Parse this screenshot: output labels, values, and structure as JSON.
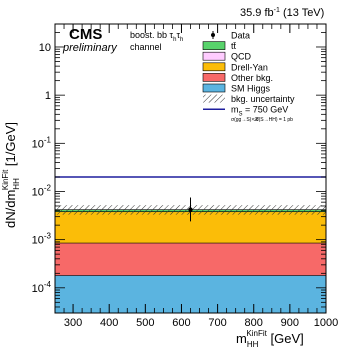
{
  "header": {
    "lumi": "35.9 fb",
    "lumi_sup": "-1",
    "energy": "(13 TeV)",
    "cms": "CMS",
    "preliminary": "preliminary",
    "channel_line1": "boost. bb τ",
    "channel_line2": "channel",
    "tau_sub": "h"
  },
  "chart_data": {
    "type": "area",
    "xlabel_main": "m",
    "xlabel_sub": "HH",
    "xlabel_sup": "KinFit",
    "xlabel_unit": "[GeV]",
    "ylabel_main": "dN/dm",
    "ylabel_sub": "HH",
    "ylabel_sup": "KinFit",
    "ylabel_unit": "[1/GeV]",
    "xlim": [
      250,
      1000
    ],
    "ylim": [
      3e-05,
      30
    ],
    "log_y": true,
    "x_ticks": [
      "300",
      "400",
      "500",
      "600",
      "700",
      "800",
      "900",
      "1000"
    ],
    "y_ticks": [
      {
        "v": 0.0001,
        "base": "10",
        "exp": "-4"
      },
      {
        "v": 0.001,
        "base": "10",
        "exp": "-3"
      },
      {
        "v": 0.01,
        "base": "10",
        "exp": "-2"
      },
      {
        "v": 0.1,
        "base": "10",
        "exp": "-1"
      },
      {
        "v": 1,
        "base": "1",
        "exp": ""
      },
      {
        "v": 10,
        "base": "10",
        "exp": ""
      }
    ],
    "x_bins": [
      250,
      1000
    ],
    "stack": [
      {
        "name": "SM Higgs",
        "color": "#5bb4e0",
        "top": 0.00018
      },
      {
        "name": "Other bkg.",
        "color": "#f76968",
        "top": 0.00085
      },
      {
        "name": "Drell-Yan",
        "color": "#fbbd08",
        "top": 0.0038
      },
      {
        "name": "QCD",
        "color": "#ffccff",
        "top": 0.0038
      },
      {
        "name": "tt̄",
        "color": "#58d36b",
        "top": 0.0042
      }
    ],
    "uncertainty": {
      "low": 0.0033,
      "high": 0.0052
    },
    "signal": {
      "name": "m_S = 750 GeV",
      "value": 0.02,
      "color": "#1e1e9e"
    },
    "data_points": [
      {
        "x": 625,
        "y": 0.0042,
        "err_low": 0.0024,
        "err_high": 0.0075
      }
    ],
    "legend": [
      {
        "kind": "marker",
        "label": "Data"
      },
      {
        "kind": "box",
        "label": "tt̄",
        "color": "#58d36b"
      },
      {
        "kind": "box",
        "label": "QCD",
        "color": "#ffccff"
      },
      {
        "kind": "box",
        "label": "Drell-Yan",
        "color": "#fbbd08"
      },
      {
        "kind": "box",
        "label": "Other bkg.",
        "color": "#f76968"
      },
      {
        "kind": "box",
        "label": "SM Higgs",
        "color": "#5bb4e0"
      },
      {
        "kind": "hatch",
        "label": "bkg. uncertainty"
      },
      {
        "kind": "line",
        "label": "m",
        "label_sub": "S",
        "label_rest": " = 750 GeV",
        "color": "#1e1e9e"
      }
    ],
    "legend_note": "σ(gg→S)×𝓑(S→HH) = 1 pb"
  }
}
